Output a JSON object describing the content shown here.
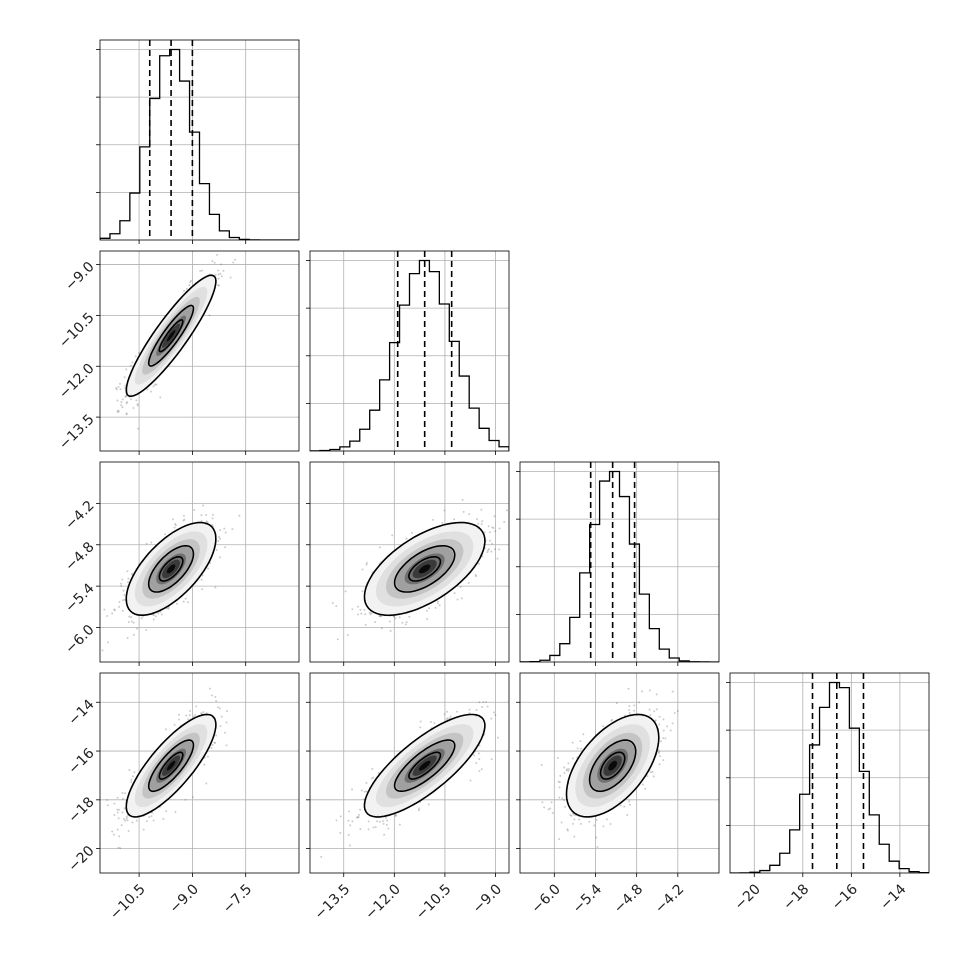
{
  "chart_data": {
    "type": "corner",
    "n_params": 4,
    "params": [
      {
        "index": 0,
        "mean": -9.6,
        "sigma": 0.6,
        "q16": -10.2,
        "q50": -9.6,
        "q84": -9.0,
        "range": [
          -11.6,
          -6.0
        ],
        "ticks": [
          -10.5,
          -9.0,
          -7.5
        ],
        "tick_labels": [
          "−10.5",
          "−9.0",
          "−7.5"
        ]
      },
      {
        "index": 1,
        "mean": -11.1,
        "sigma": 0.85,
        "q16": -11.9,
        "q50": -11.1,
        "q84": -10.3,
        "range": [
          -14.5,
          -8.6
        ],
        "ticks": [
          -13.5,
          -12.0,
          -10.5,
          -9.0
        ],
        "tick_labels": [
          "−13.5",
          "−12.0",
          "−10.5",
          "−9.0"
        ]
      },
      {
        "index": 2,
        "mean": -5.15,
        "sigma": 0.32,
        "q16": -5.47,
        "q50": -5.15,
        "q84": -4.83,
        "range": [
          -6.5,
          -3.6
        ],
        "ticks": [
          -6.0,
          -5.4,
          -4.8,
          -4.2
        ],
        "tick_labels": [
          "−6.0",
          "−5.4",
          "−4.8",
          "−4.2"
        ]
      },
      {
        "index": 3,
        "mean": -16.6,
        "sigma": 1.0,
        "q16": -17.6,
        "q50": -16.6,
        "q84": -15.5,
        "range": [
          -21.0,
          -12.8
        ],
        "ticks": [
          -20,
          -18,
          -16,
          -14
        ],
        "tick_labels": [
          "−20",
          "−18",
          "−16",
          "−14"
        ]
      }
    ],
    "correlations": {
      "0-1": 0.9,
      "0-2": 0.65,
      "0-3": 0.8,
      "1-2": 0.6,
      "1-3": 0.78,
      "2-3": 0.55
    },
    "histogram_bins": 20,
    "quantiles": [
      0.16,
      0.5,
      0.84
    ],
    "contour_levels": [
      0.393,
      0.865
    ],
    "grid": true,
    "colors": {
      "points": "#6e6e6e",
      "lines": "#000000",
      "grid": "#b0b0b0"
    }
  }
}
